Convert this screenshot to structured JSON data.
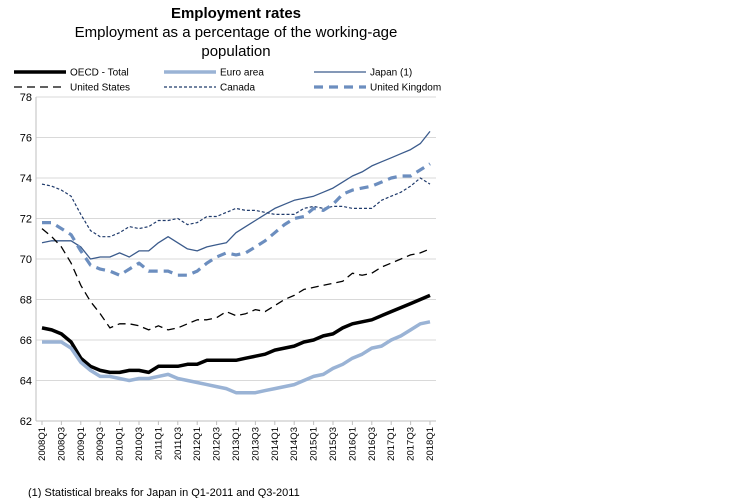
{
  "chart_data": {
    "type": "line",
    "title": "Employment rates",
    "subtitle_lines": [
      "Employment as a percentage of the working-age",
      "population"
    ],
    "xlabel": "",
    "ylabel": "",
    "ylim": [
      62,
      78
    ],
    "yticks": [
      62,
      64,
      66,
      68,
      70,
      72,
      74,
      76,
      78
    ],
    "grid": "horizontal",
    "legend_position": "top",
    "x": [
      "2008Q1",
      "2008Q2",
      "2008Q3",
      "2008Q4",
      "2009Q1",
      "2009Q2",
      "2009Q3",
      "2009Q4",
      "2010Q1",
      "2010Q2",
      "2010Q3",
      "2010Q4",
      "2011Q1",
      "2011Q2",
      "2011Q3",
      "2011Q4",
      "2012Q1",
      "2012Q2",
      "2012Q3",
      "2012Q4",
      "2013Q1",
      "2013Q2",
      "2013Q3",
      "2013Q4",
      "2014Q1",
      "2014Q2",
      "2014Q3",
      "2014Q4",
      "2015Q1",
      "2015Q2",
      "2015Q3",
      "2015Q4",
      "2016Q1",
      "2016Q2",
      "2016Q3",
      "2016Q4",
      "2017Q1",
      "2017Q2",
      "2017Q3",
      "2017Q4",
      "2018Q1"
    ],
    "xtick_labels": [
      "2008Q1",
      "2008Q3",
      "2009Q1",
      "2009Q3",
      "2010Q1",
      "2010Q3",
      "2011Q1",
      "2011Q3",
      "2012Q1",
      "2012Q3",
      "2013Q1",
      "2013Q3",
      "2014Q1",
      "2014Q3",
      "2015Q1",
      "2015Q3",
      "2016Q1",
      "2016Q3",
      "2017Q1",
      "2017Q3",
      "2018Q1"
    ],
    "series": [
      {
        "name": "OECD - Total",
        "color": "#000000",
        "style": "solid-thick",
        "values": [
          66.6,
          66.5,
          66.3,
          65.9,
          65.1,
          64.7,
          64.5,
          64.4,
          64.4,
          64.5,
          64.5,
          64.4,
          64.7,
          64.7,
          64.7,
          64.8,
          64.8,
          65.0,
          65.0,
          65.0,
          65.0,
          65.1,
          65.2,
          65.3,
          65.5,
          65.6,
          65.7,
          65.9,
          66.0,
          66.2,
          66.3,
          66.6,
          66.8,
          66.9,
          67.0,
          67.2,
          67.4,
          67.6,
          67.8,
          68.0,
          68.2
        ]
      },
      {
        "name": "Euro area",
        "color": "#9ab3d5",
        "style": "solid-thick",
        "values": [
          65.9,
          65.9,
          65.9,
          65.6,
          64.9,
          64.5,
          64.2,
          64.2,
          64.1,
          64.0,
          64.1,
          64.1,
          64.2,
          64.3,
          64.1,
          64.0,
          63.9,
          63.8,
          63.7,
          63.6,
          63.4,
          63.4,
          63.4,
          63.5,
          63.6,
          63.7,
          63.8,
          64.0,
          64.2,
          64.3,
          64.6,
          64.8,
          65.1,
          65.3,
          65.6,
          65.7,
          66.0,
          66.2,
          66.5,
          66.8,
          66.9
        ]
      },
      {
        "name": "Japan (1)",
        "color": "#3b5b8c",
        "style": "solid-thin",
        "values": [
          70.8,
          70.9,
          70.9,
          70.9,
          70.6,
          70.0,
          70.1,
          70.1,
          70.3,
          70.1,
          70.4,
          70.4,
          70.8,
          71.1,
          70.8,
          70.5,
          70.4,
          70.6,
          70.7,
          70.8,
          71.3,
          71.6,
          71.9,
          72.2,
          72.5,
          72.7,
          72.9,
          73.0,
          73.1,
          73.3,
          73.5,
          73.8,
          74.1,
          74.3,
          74.6,
          74.8,
          75.0,
          75.2,
          75.4,
          75.7,
          76.3
        ]
      },
      {
        "name": "United States",
        "color": "#000000",
        "style": "dashed-long",
        "values": [
          71.5,
          71.1,
          70.6,
          69.8,
          68.7,
          67.9,
          67.3,
          66.6,
          66.8,
          66.8,
          66.7,
          66.5,
          66.7,
          66.5,
          66.6,
          66.8,
          67.0,
          67.0,
          67.1,
          67.4,
          67.2,
          67.3,
          67.5,
          67.4,
          67.7,
          68.0,
          68.2,
          68.5,
          68.6,
          68.7,
          68.8,
          68.9,
          69.3,
          69.2,
          69.3,
          69.6,
          69.8,
          70.0,
          70.2,
          70.3,
          70.5
        ]
      },
      {
        "name": "Canada",
        "color": "#1f3a6b",
        "style": "dashed-short",
        "values": [
          73.7,
          73.6,
          73.4,
          73.1,
          72.2,
          71.4,
          71.1,
          71.1,
          71.3,
          71.6,
          71.5,
          71.6,
          71.9,
          71.9,
          72.0,
          71.7,
          71.8,
          72.1,
          72.1,
          72.3,
          72.5,
          72.4,
          72.4,
          72.3,
          72.2,
          72.2,
          72.2,
          72.5,
          72.6,
          72.5,
          72.6,
          72.6,
          72.5,
          72.5,
          72.5,
          72.9,
          73.1,
          73.3,
          73.6,
          74.0,
          73.7
        ]
      },
      {
        "name": "United Kingdom",
        "color": "#6c8ebf",
        "style": "dashed-thick",
        "values": [
          71.8,
          71.8,
          71.5,
          71.2,
          70.4,
          69.7,
          69.5,
          69.4,
          69.2,
          69.5,
          69.8,
          69.4,
          69.4,
          69.4,
          69.2,
          69.2,
          69.4,
          69.8,
          70.1,
          70.3,
          70.2,
          70.3,
          70.6,
          70.9,
          71.3,
          71.7,
          72.0,
          72.1,
          72.5,
          72.4,
          72.7,
          73.2,
          73.4,
          73.5,
          73.6,
          73.8,
          74.0,
          74.1,
          74.1,
          74.4,
          74.7
        ]
      }
    ],
    "footnote": "(1) Statistical breaks for Japan in Q1-2011 and Q3-2011"
  }
}
